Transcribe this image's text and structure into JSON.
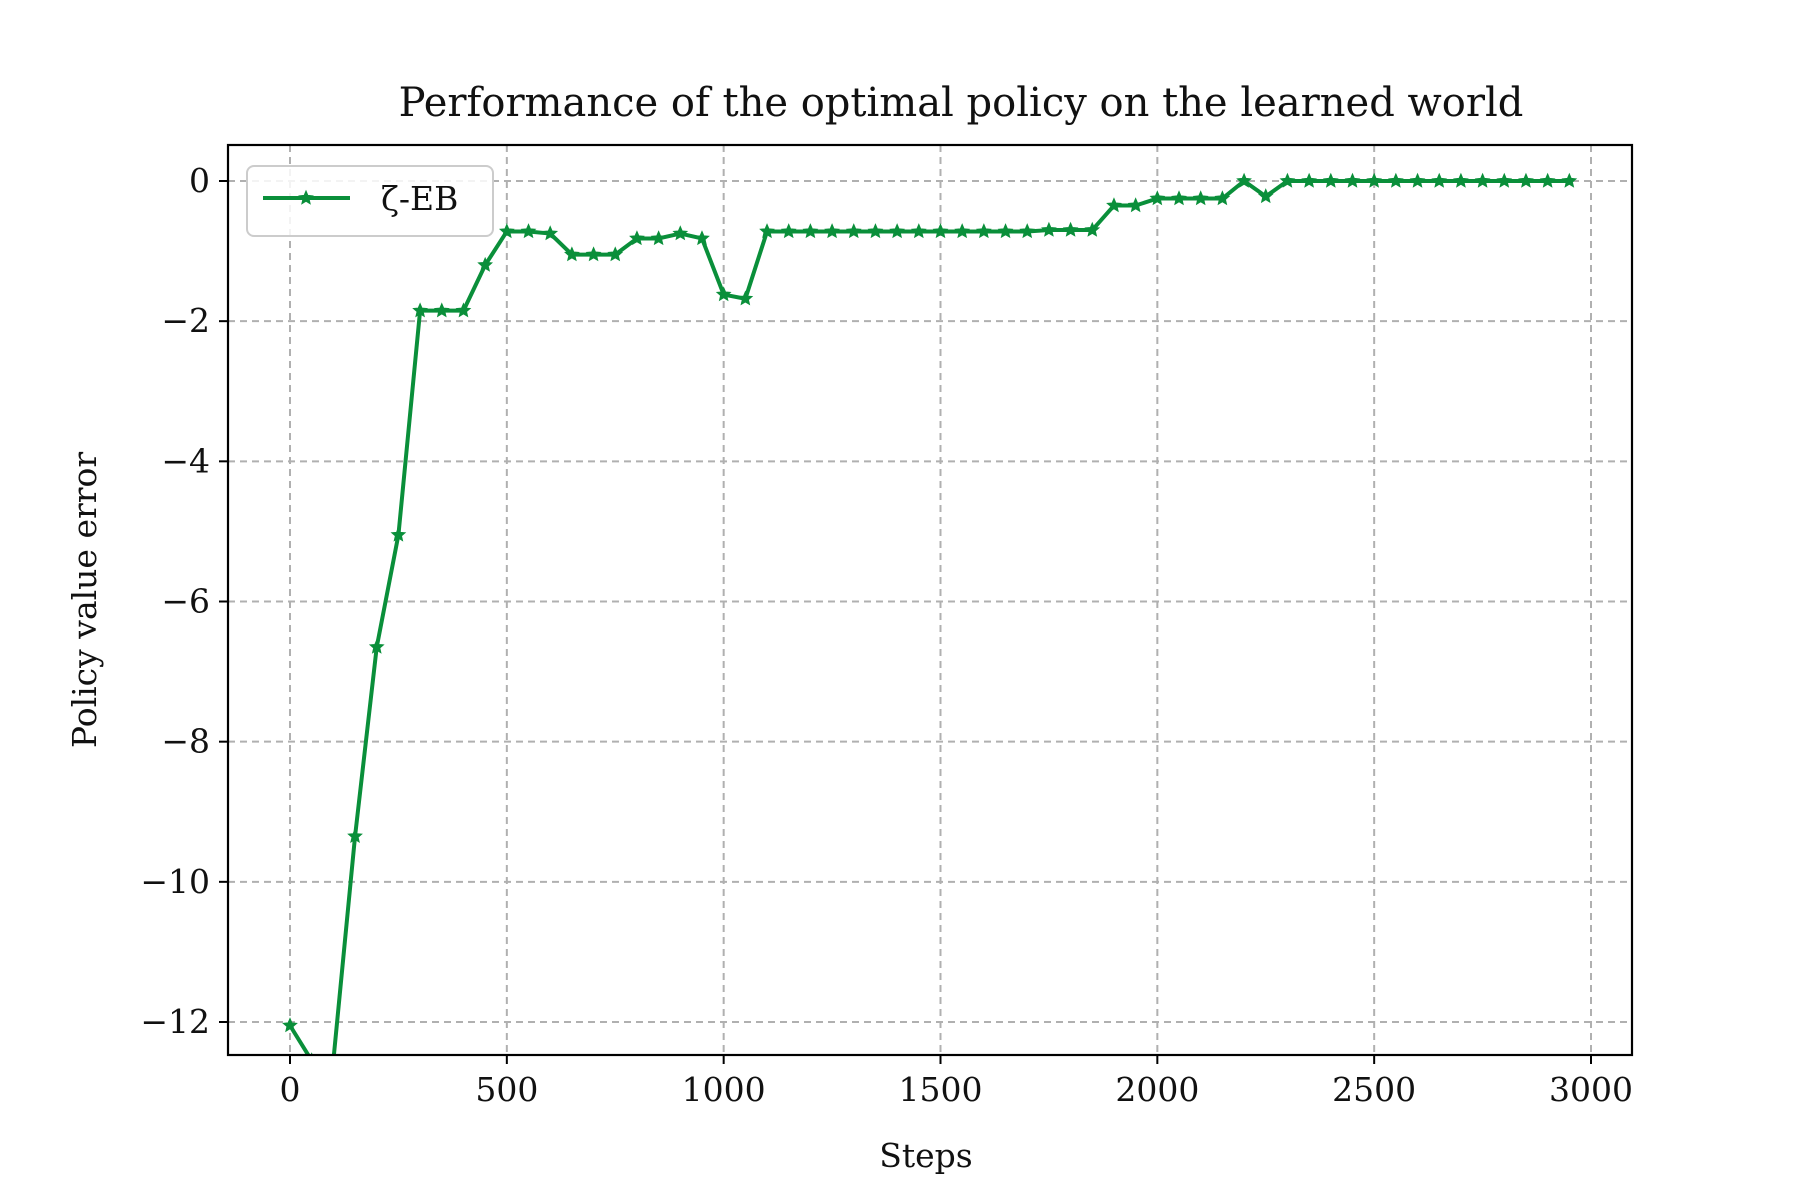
{
  "chart_data": {
    "type": "line",
    "title": "Performance of the optimal policy on the learned world",
    "xlabel": "Steps",
    "ylabel": "Policy value error",
    "xlim": [
      -150,
      3100
    ],
    "ylim": [
      -12.5,
      0.5
    ],
    "xticks": [
      0,
      500,
      1000,
      1500,
      2000,
      2500,
      3000
    ],
    "xtick_labels": [
      "0",
      "500",
      "1000",
      "1500",
      "2000",
      "2500",
      "3000"
    ],
    "yticks": [
      0,
      -2,
      -4,
      -6,
      -8,
      -10,
      -12
    ],
    "ytick_labels": [
      "0",
      "−2",
      "−4",
      "−6",
      "−8",
      "−10",
      "−12"
    ],
    "grid": true,
    "grid_style": "dashed",
    "legend_position": "upper-left",
    "series": [
      {
        "name": "ζ-EB",
        "color": "#0a8f3a",
        "marker": "star",
        "x": [
          0,
          50,
          100,
          150,
          200,
          250,
          300,
          350,
          400,
          450,
          500,
          550,
          600,
          650,
          700,
          750,
          800,
          850,
          900,
          950,
          1000,
          1050,
          1100,
          1150,
          1200,
          1250,
          1300,
          1350,
          1400,
          1450,
          1500,
          1550,
          1600,
          1650,
          1700,
          1750,
          1800,
          1850,
          1900,
          1950,
          2000,
          2050,
          2100,
          2150,
          2200,
          2250,
          2300,
          2350,
          2400,
          2450,
          2500,
          2550,
          2600,
          2650,
          2700,
          2750,
          2800,
          2850,
          2900,
          2950
        ],
        "y": [
          -12.05,
          -12.55,
          -12.55,
          -9.35,
          -6.65,
          -5.05,
          -1.85,
          -1.85,
          -1.85,
          -1.2,
          -0.72,
          -0.72,
          -0.75,
          -1.05,
          -1.05,
          -1.05,
          -0.82,
          -0.82,
          -0.75,
          -0.82,
          -1.62,
          -1.68,
          -0.72,
          -0.72,
          -0.72,
          -0.72,
          -0.72,
          -0.72,
          -0.72,
          -0.72,
          -0.72,
          -0.72,
          -0.72,
          -0.72,
          -0.72,
          -0.7,
          -0.7,
          -0.7,
          -0.35,
          -0.35,
          -0.25,
          -0.25,
          -0.25,
          -0.25,
          0.0,
          -0.22,
          0.0,
          0.0,
          0.0,
          0.0,
          0.0,
          0.0,
          0.0,
          0.0,
          0.0,
          0.0,
          0.0,
          0.0,
          0.0,
          0.0
        ]
      }
    ]
  }
}
